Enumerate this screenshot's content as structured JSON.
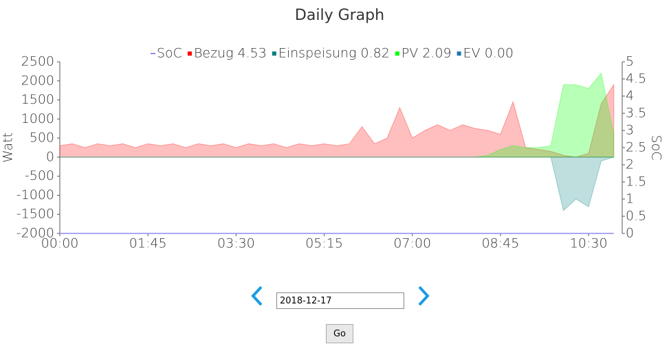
{
  "chart_data": {
    "type": "area",
    "title": "Daily Graph",
    "y_label": "Watt",
    "y2_label": "SoC",
    "x": [
      0,
      15,
      30,
      45,
      60,
      75,
      90,
      105,
      120,
      135,
      150,
      165,
      180,
      195,
      210,
      225,
      240,
      255,
      270,
      285,
      300,
      315,
      330,
      345,
      360,
      375,
      390,
      405,
      420,
      435,
      450,
      465,
      480,
      495,
      510,
      525,
      540,
      555,
      570,
      585,
      600,
      615,
      630,
      645,
      660
    ],
    "xlim": [
      0,
      670
    ],
    "xticks": [
      {
        "value": 0,
        "label": "00:00"
      },
      {
        "value": 105,
        "label": "01:45"
      },
      {
        "value": 210,
        "label": "03:30"
      },
      {
        "value": 315,
        "label": "05:15"
      },
      {
        "value": 420,
        "label": "07:00"
      },
      {
        "value": 525,
        "label": "08:45"
      },
      {
        "value": 630,
        "label": "10:30"
      }
    ],
    "ylim": [
      -2000,
      2500
    ],
    "yticks": [
      -2000,
      -1500,
      -1000,
      -500,
      0,
      500,
      1000,
      1500,
      2000,
      2500
    ],
    "y2lim": [
      0,
      5
    ],
    "y2ticks": [
      0,
      0.5,
      1,
      1.5,
      2,
      2.5,
      3,
      3.5,
      4,
      4.5,
      5
    ],
    "series": [
      {
        "name": "SoC",
        "color": "#8c8cf0",
        "axis": "y2",
        "style": "line",
        "values": [
          0,
          0,
          0,
          0,
          0,
          0,
          0,
          0,
          0,
          0,
          0,
          0,
          0,
          0,
          0,
          0,
          0,
          0,
          0,
          0,
          0,
          0,
          0,
          0,
          0,
          0,
          0,
          0,
          0,
          0,
          0,
          0,
          0,
          0,
          0,
          0,
          0,
          0,
          0,
          0,
          0,
          0,
          0,
          0,
          0
        ]
      },
      {
        "name": "Bezug 4.53",
        "color": "#ff0000",
        "fill": "rgba(255,0,0,0.25)",
        "values": [
          300,
          350,
          250,
          350,
          300,
          350,
          250,
          350,
          300,
          350,
          250,
          350,
          300,
          350,
          250,
          350,
          300,
          350,
          250,
          350,
          300,
          350,
          300,
          350,
          800,
          350,
          500,
          1300,
          500,
          700,
          850,
          700,
          850,
          750,
          700,
          600,
          1450,
          250,
          200,
          150,
          50,
          0,
          100,
          1400,
          1900
        ]
      },
      {
        "name": "Einspeisung 0.82",
        "color": "#008080",
        "fill": "rgba(0,128,128,0.25)",
        "values": [
          0,
          0,
          0,
          0,
          0,
          0,
          0,
          0,
          0,
          0,
          0,
          0,
          0,
          0,
          0,
          0,
          0,
          0,
          0,
          0,
          0,
          0,
          0,
          0,
          0,
          0,
          0,
          0,
          0,
          0,
          0,
          0,
          0,
          0,
          0,
          0,
          0,
          0,
          0,
          0,
          -1400,
          -1100,
          -1300,
          -100,
          0
        ]
      },
      {
        "name": "PV 2.09",
        "color": "#00ff00",
        "fill": "rgba(0,255,0,0.28)",
        "values": [
          0,
          0,
          0,
          0,
          0,
          0,
          0,
          0,
          0,
          0,
          0,
          0,
          0,
          0,
          0,
          0,
          0,
          0,
          0,
          0,
          0,
          0,
          0,
          0,
          0,
          0,
          0,
          0,
          0,
          0,
          0,
          0,
          0,
          0,
          50,
          200,
          300,
          250,
          250,
          300,
          1900,
          1900,
          1800,
          2200,
          600
        ]
      },
      {
        "name": "EV 0.00",
        "color": "#1f77b4",
        "fill": "rgba(31,119,180,0.25)",
        "values": [
          0,
          0,
          0,
          0,
          0,
          0,
          0,
          0,
          0,
          0,
          0,
          0,
          0,
          0,
          0,
          0,
          0,
          0,
          0,
          0,
          0,
          0,
          0,
          0,
          0,
          0,
          0,
          0,
          0,
          0,
          0,
          0,
          0,
          0,
          0,
          0,
          0,
          0,
          0,
          0,
          0,
          0,
          0,
          0,
          0
        ]
      }
    ]
  },
  "controls": {
    "date": "2018-12-17",
    "button": "Go"
  }
}
